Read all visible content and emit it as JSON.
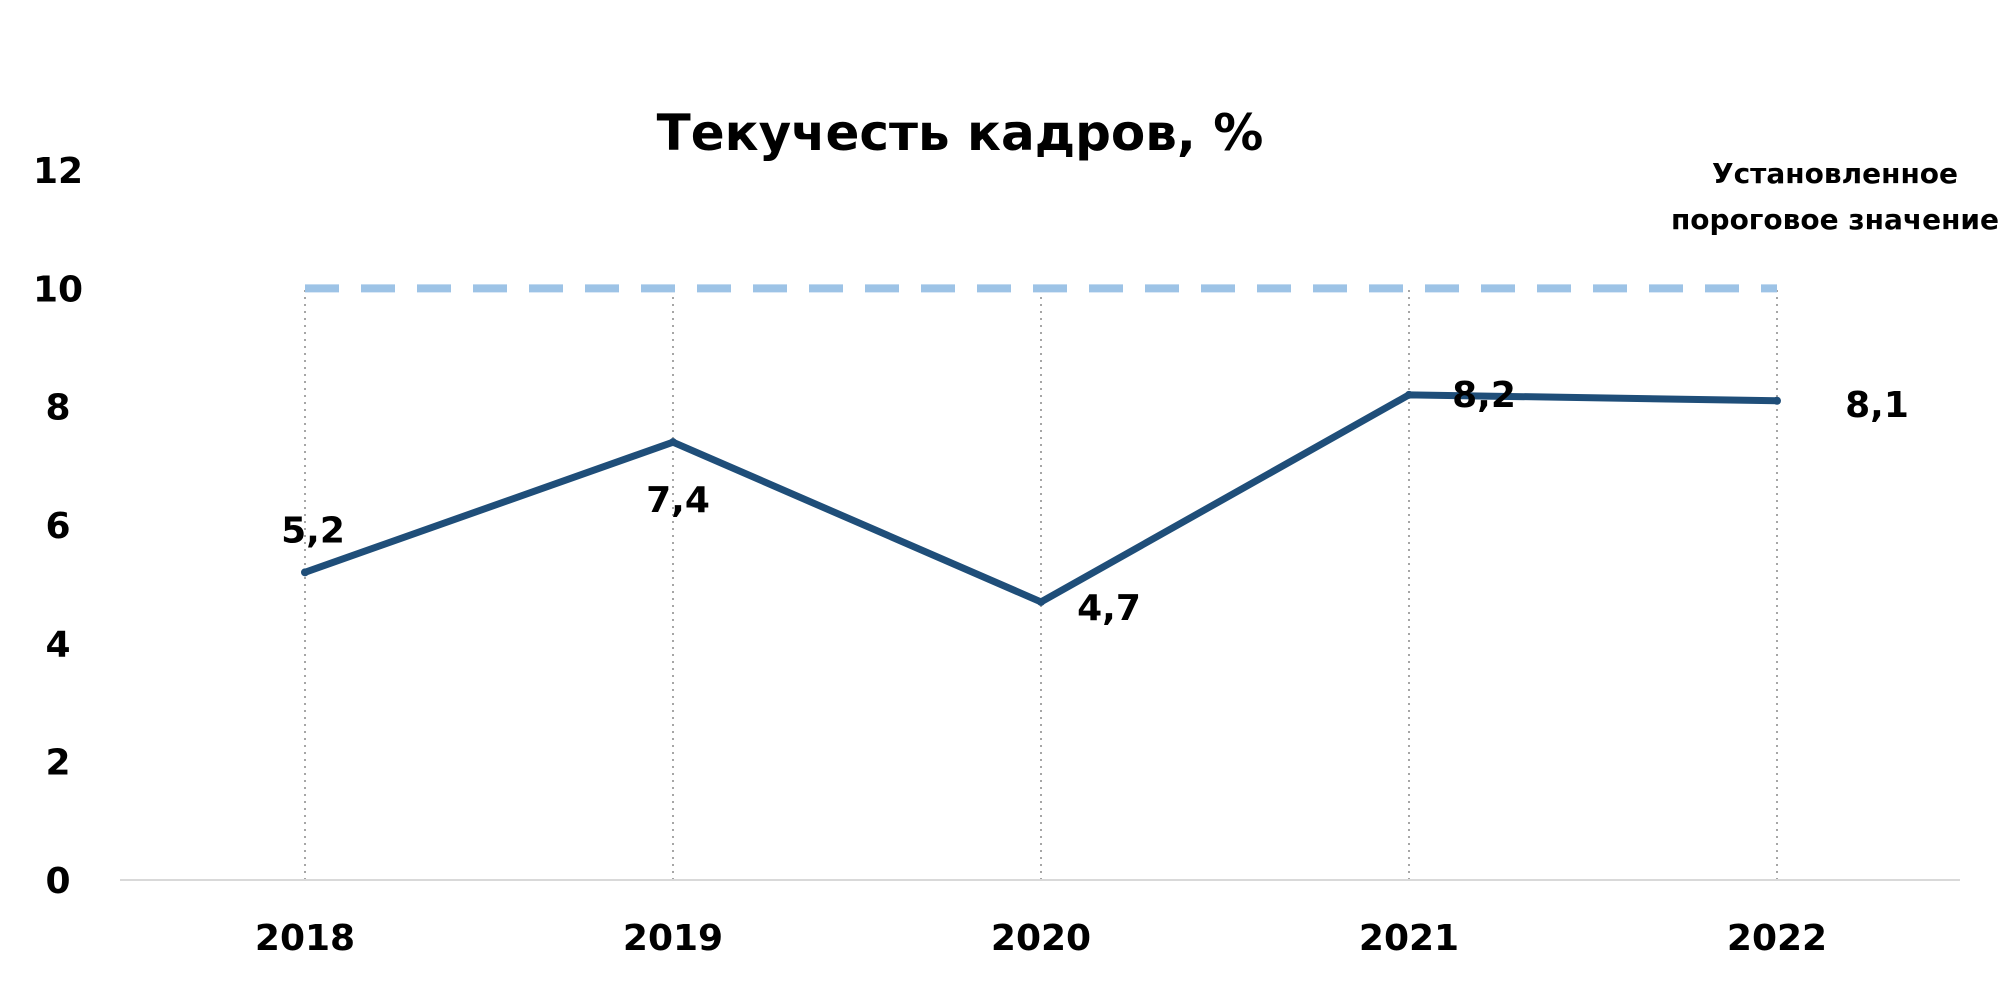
{
  "chart_data": {
    "type": "line",
    "title": "Текучесть кадров, %",
    "categories": [
      "2018",
      "2019",
      "2020",
      "2021",
      "2022"
    ],
    "series": [
      {
        "values": [
          5.2,
          7.4,
          4.7,
          8.2,
          8.1
        ],
        "labels": [
          "5,2",
          "7,4",
          "4,7",
          "8,2",
          "8,1"
        ],
        "color": "#1F4E79",
        "style": "solid"
      }
    ],
    "threshold": {
      "value": 10,
      "label_lines": [
        "Установленное",
        "пороговое значение"
      ],
      "color": "#9DC3E6",
      "style": "dashed"
    },
    "xlabel": "",
    "ylabel": "",
    "ylim": [
      0,
      12
    ],
    "yticks": [
      0,
      2,
      4,
      6,
      8,
      10,
      12
    ],
    "grid": "vertical dotted",
    "legend": "none",
    "colors": {
      "axis": "#D9D9D9",
      "grid": "#A6A6A6"
    }
  }
}
